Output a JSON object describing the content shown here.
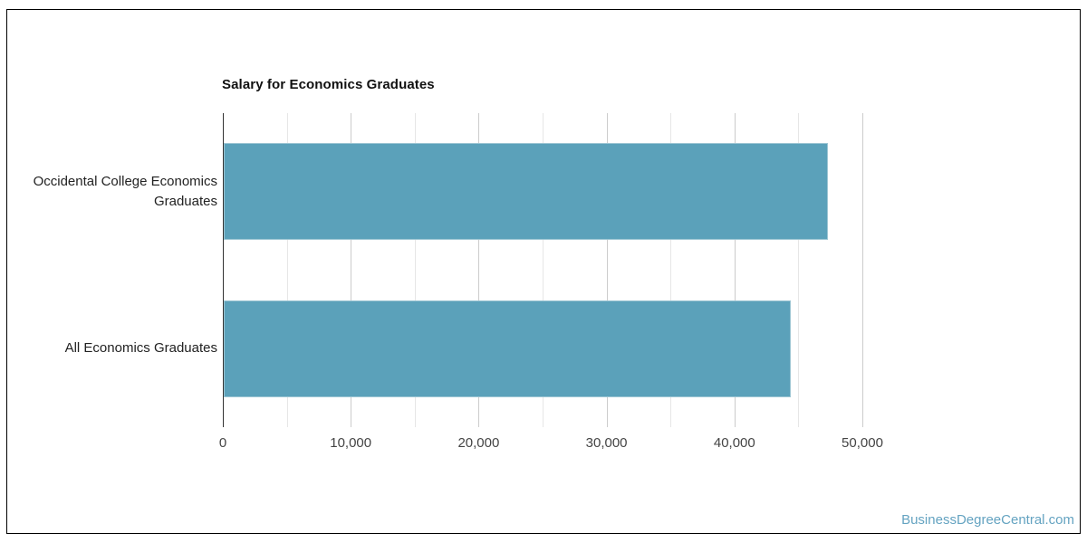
{
  "page": {
    "background": "#ffffff",
    "watermark": "BusinessDegreeCentral.com"
  },
  "chart_data": {
    "type": "bar",
    "orientation": "horizontal",
    "title": "Salary for Economics Graduates",
    "categories": [
      "Occidental College Economics Graduates",
      "All Economics Graduates"
    ],
    "values": [
      47200,
      44300
    ],
    "xlabel": "",
    "ylabel": "",
    "xlim": [
      0,
      56200
    ],
    "x_tick_values": [
      0,
      10000,
      20000,
      30000,
      40000,
      50000
    ],
    "x_tick_labels": [
      "0",
      "10,000",
      "20,000",
      "30,000",
      "40,000",
      "50,000"
    ],
    "minor_grid_interval": 5000,
    "major_grid_interval": 10000,
    "grid": "on",
    "legend": "none",
    "colors": {
      "bar": "#5ba1ba",
      "bar_border": "#9cc5d3",
      "axis_line": "#333333",
      "major_grid": "#cccccc",
      "minor_grid": "#e6e6e6",
      "tick_label": "#444444",
      "category_label": "#222222",
      "title": "#111111",
      "watermark": "#64a3c1",
      "frame_border": "#000000"
    }
  }
}
